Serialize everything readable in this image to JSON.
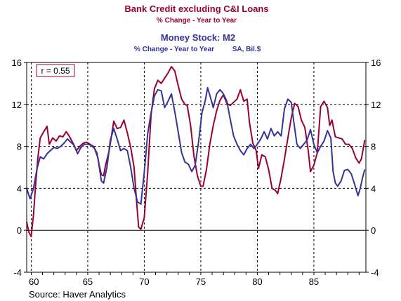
{
  "chart_data": {
    "type": "line",
    "title": "Bank Credit excluding C&I Loans",
    "subtitle": "% Change - Year to Year",
    "title2": "Money Stock: M2",
    "subtitle2": "% Change - Year to Year",
    "subtitle2_note": "SA, Bil.$",
    "annotation": "r = 0.55",
    "source": "Source: Haver Analytics",
    "xlabel": "",
    "ylabel": "",
    "xlim": [
      1959.6,
      1989.6
    ],
    "ylim": [
      -4,
      16
    ],
    "x_ticks": [
      {
        "value": 1960,
        "label": "60"
      },
      {
        "value": 1965,
        "label": "65"
      },
      {
        "value": 1970,
        "label": "70"
      },
      {
        "value": 1975,
        "label": "75"
      },
      {
        "value": 1980,
        "label": "80"
      },
      {
        "value": 1985,
        "label": "85"
      }
    ],
    "y_ticks": [
      {
        "value": 16,
        "label": "16"
      },
      {
        "value": 12,
        "label": "12"
      },
      {
        "value": 8,
        "label": "8"
      },
      {
        "value": 4,
        "label": "4"
      },
      {
        "value": 0,
        "label": "0"
      },
      {
        "value": -4,
        "label": "-4"
      }
    ],
    "grid": true,
    "series": [
      {
        "name": "Bank Credit excluding C&I Loans",
        "color": "#990033",
        "points": [
          [
            1959.6,
            0.8
          ],
          [
            1959.8,
            -0.2
          ],
          [
            1960.0,
            -0.6
          ],
          [
            1960.2,
            1.5
          ],
          [
            1960.4,
            4.5
          ],
          [
            1960.6,
            7.0
          ],
          [
            1960.8,
            8.8
          ],
          [
            1961.1,
            9.4
          ],
          [
            1961.4,
            9.9
          ],
          [
            1961.6,
            8.2
          ],
          [
            1961.9,
            8.8
          ],
          [
            1962.2,
            8.5
          ],
          [
            1962.5,
            9.0
          ],
          [
            1962.8,
            8.9
          ],
          [
            1963.1,
            9.4
          ],
          [
            1963.4,
            8.9
          ],
          [
            1963.7,
            8.3
          ],
          [
            1964.0,
            7.6
          ],
          [
            1964.3,
            8.0
          ],
          [
            1964.6,
            8.3
          ],
          [
            1964.9,
            8.4
          ],
          [
            1965.2,
            8.2
          ],
          [
            1965.5,
            8.0
          ],
          [
            1965.8,
            7.4
          ],
          [
            1966.0,
            6.3
          ],
          [
            1966.2,
            5.3
          ],
          [
            1966.4,
            5.2
          ],
          [
            1966.6,
            6.3
          ],
          [
            1966.9,
            7.6
          ],
          [
            1967.1,
            9.0
          ],
          [
            1967.3,
            10.4
          ],
          [
            1967.6,
            9.7
          ],
          [
            1967.9,
            9.8
          ],
          [
            1968.2,
            10.5
          ],
          [
            1968.5,
            9.3
          ],
          [
            1968.8,
            7.9
          ],
          [
            1969.1,
            6.0
          ],
          [
            1969.3,
            3.0
          ],
          [
            1969.5,
            0.3
          ],
          [
            1969.7,
            0.1
          ],
          [
            1970.0,
            1.2
          ],
          [
            1970.3,
            5.5
          ],
          [
            1970.6,
            11.0
          ],
          [
            1970.9,
            13.5
          ],
          [
            1971.2,
            14.3
          ],
          [
            1971.5,
            14.0
          ],
          [
            1971.8,
            14.5
          ],
          [
            1972.1,
            15.0
          ],
          [
            1972.4,
            15.6
          ],
          [
            1972.7,
            15.2
          ],
          [
            1973.0,
            13.8
          ],
          [
            1973.3,
            12.5
          ],
          [
            1973.6,
            12.0
          ],
          [
            1973.8,
            11.9
          ],
          [
            1974.1,
            10.0
          ],
          [
            1974.4,
            7.0
          ],
          [
            1974.7,
            5.2
          ],
          [
            1975.0,
            4.2
          ],
          [
            1975.2,
            4.2
          ],
          [
            1975.5,
            5.8
          ],
          [
            1975.8,
            8.2
          ],
          [
            1976.1,
            10.0
          ],
          [
            1976.4,
            11.4
          ],
          [
            1976.7,
            12.4
          ],
          [
            1977.0,
            12.9
          ],
          [
            1977.3,
            12.1
          ],
          [
            1977.6,
            11.9
          ],
          [
            1977.9,
            12.2
          ],
          [
            1978.2,
            12.5
          ],
          [
            1978.5,
            13.4
          ],
          [
            1978.8,
            12.3
          ],
          [
            1979.1,
            12.5
          ],
          [
            1979.3,
            10.3
          ],
          [
            1979.6,
            8.3
          ],
          [
            1979.9,
            7.6
          ],
          [
            1980.1,
            5.9
          ],
          [
            1980.4,
            7.2
          ],
          [
            1980.7,
            7.0
          ],
          [
            1981.0,
            5.8
          ],
          [
            1981.3,
            4.0
          ],
          [
            1981.6,
            3.8
          ],
          [
            1981.8,
            3.5
          ],
          [
            1982.1,
            5.0
          ],
          [
            1982.4,
            6.8
          ],
          [
            1982.7,
            8.8
          ],
          [
            1983.0,
            10.7
          ],
          [
            1983.3,
            12.1
          ],
          [
            1983.6,
            11.8
          ],
          [
            1983.9,
            10.5
          ],
          [
            1984.2,
            9.8
          ],
          [
            1984.5,
            7.6
          ],
          [
            1984.7,
            5.6
          ],
          [
            1985.0,
            6.2
          ],
          [
            1985.3,
            7.4
          ],
          [
            1985.6,
            11.8
          ],
          [
            1985.9,
            12.3
          ],
          [
            1986.2,
            11.7
          ],
          [
            1986.4,
            10.0
          ],
          [
            1986.6,
            10.5
          ],
          [
            1986.9,
            8.9
          ],
          [
            1987.2,
            8.8
          ],
          [
            1987.5,
            8.7
          ],
          [
            1987.8,
            8.2
          ],
          [
            1988.1,
            8.2
          ],
          [
            1988.4,
            7.8
          ],
          [
            1988.7,
            6.9
          ],
          [
            1989.0,
            6.4
          ],
          [
            1989.2,
            6.8
          ],
          [
            1989.5,
            8.6
          ]
        ]
      },
      {
        "name": "Money Stock: M2",
        "color": "#333399",
        "points": [
          [
            1959.6,
            4.0
          ],
          [
            1959.9,
            3.0
          ],
          [
            1960.2,
            4.0
          ],
          [
            1960.5,
            5.8
          ],
          [
            1960.8,
            7.0
          ],
          [
            1961.1,
            6.8
          ],
          [
            1961.4,
            7.3
          ],
          [
            1961.7,
            7.6
          ],
          [
            1962.0,
            7.9
          ],
          [
            1962.3,
            7.8
          ],
          [
            1962.6,
            8.0
          ],
          [
            1962.9,
            8.3
          ],
          [
            1963.2,
            8.7
          ],
          [
            1963.5,
            8.4
          ],
          [
            1963.8,
            8.1
          ],
          [
            1964.1,
            7.3
          ],
          [
            1964.4,
            7.9
          ],
          [
            1964.7,
            8.2
          ],
          [
            1965.0,
            8.2
          ],
          [
            1965.3,
            8.1
          ],
          [
            1965.6,
            7.8
          ],
          [
            1965.9,
            6.9
          ],
          [
            1966.2,
            4.7
          ],
          [
            1966.4,
            4.5
          ],
          [
            1966.7,
            6.0
          ],
          [
            1967.0,
            8.6
          ],
          [
            1967.3,
            9.7
          ],
          [
            1967.6,
            8.7
          ],
          [
            1967.9,
            7.6
          ],
          [
            1968.2,
            7.8
          ],
          [
            1968.5,
            7.6
          ],
          [
            1968.8,
            6.0
          ],
          [
            1969.1,
            4.0
          ],
          [
            1969.4,
            2.7
          ],
          [
            1969.7,
            2.5
          ],
          [
            1970.0,
            5.5
          ],
          [
            1970.3,
            9.2
          ],
          [
            1970.6,
            11.2
          ],
          [
            1970.9,
            12.8
          ],
          [
            1971.2,
            13.4
          ],
          [
            1971.5,
            13.3
          ],
          [
            1971.8,
            11.7
          ],
          [
            1972.1,
            12.3
          ],
          [
            1972.4,
            13.0
          ],
          [
            1972.7,
            11.3
          ],
          [
            1973.0,
            9.4
          ],
          [
            1973.3,
            7.4
          ],
          [
            1973.6,
            6.5
          ],
          [
            1973.9,
            6.3
          ],
          [
            1974.2,
            5.6
          ],
          [
            1974.5,
            6.2
          ],
          [
            1974.8,
            8.4
          ],
          [
            1975.1,
            11.2
          ],
          [
            1975.4,
            12.4
          ],
          [
            1975.6,
            13.6
          ],
          [
            1975.9,
            12.5
          ],
          [
            1976.1,
            11.7
          ],
          [
            1976.4,
            13.0
          ],
          [
            1976.7,
            13.4
          ],
          [
            1977.0,
            13.0
          ],
          [
            1977.3,
            12.3
          ],
          [
            1977.6,
            10.6
          ],
          [
            1977.9,
            9.0
          ],
          [
            1978.2,
            8.2
          ],
          [
            1978.5,
            7.6
          ],
          [
            1978.8,
            7.2
          ],
          [
            1979.1,
            7.8
          ],
          [
            1979.4,
            8.2
          ],
          [
            1979.7,
            7.8
          ],
          [
            1980.0,
            8.2
          ],
          [
            1980.3,
            8.7
          ],
          [
            1980.6,
            9.4
          ],
          [
            1980.9,
            8.7
          ],
          [
            1981.2,
            9.7
          ],
          [
            1981.5,
            9.0
          ],
          [
            1981.8,
            9.4
          ],
          [
            1982.1,
            9.0
          ],
          [
            1982.4,
            11.6
          ],
          [
            1982.7,
            12.5
          ],
          [
            1983.0,
            12.2
          ],
          [
            1983.2,
            10.5
          ],
          [
            1983.5,
            8.2
          ],
          [
            1983.8,
            7.8
          ],
          [
            1984.1,
            8.2
          ],
          [
            1984.4,
            8.6
          ],
          [
            1984.7,
            9.6
          ],
          [
            1985.0,
            8.2
          ],
          [
            1985.3,
            7.4
          ],
          [
            1985.6,
            8.0
          ],
          [
            1985.9,
            8.5
          ],
          [
            1986.2,
            9.5
          ],
          [
            1986.5,
            8.8
          ],
          [
            1986.7,
            5.6
          ],
          [
            1986.9,
            4.5
          ],
          [
            1987.1,
            4.2
          ],
          [
            1987.4,
            4.7
          ],
          [
            1987.7,
            5.7
          ],
          [
            1988.0,
            5.8
          ],
          [
            1988.3,
            5.4
          ],
          [
            1988.6,
            4.4
          ],
          [
            1988.9,
            3.3
          ],
          [
            1989.1,
            4.0
          ],
          [
            1989.3,
            5.0
          ],
          [
            1989.5,
            5.8
          ]
        ]
      }
    ]
  }
}
